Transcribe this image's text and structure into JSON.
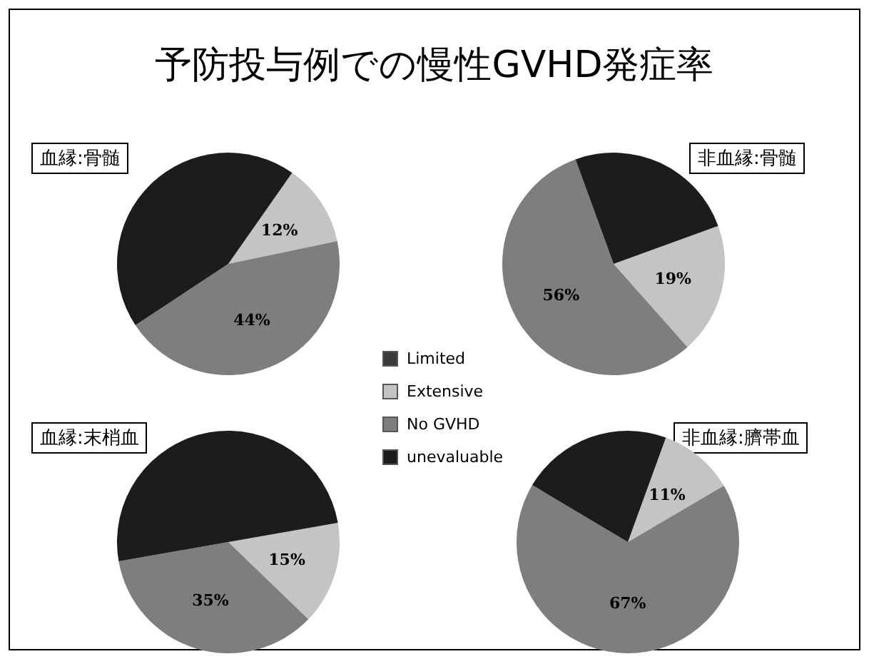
{
  "chart_data": {
    "type": "pie",
    "title": "予防投与例での慢性GVHD発症率",
    "categories": [
      "Limited",
      "Extensive",
      "No GVHD",
      "unevaluable"
    ],
    "colors": [
      "#3a3a3a",
      "#c4c4c4",
      "#7e7e7e",
      "#1c1c1c"
    ],
    "legend": "right",
    "series": [
      {
        "name": "血縁:骨髄",
        "values": [
          0,
          12,
          44,
          44
        ],
        "value_labels": [
          null,
          "12%",
          "44%",
          null
        ]
      },
      {
        "name": "非血縁:骨髄",
        "values": [
          0,
          19,
          56,
          25
        ],
        "value_labels": [
          null,
          "19%",
          "56%",
          null
        ]
      },
      {
        "name": "血縁:末梢血",
        "values": [
          0,
          15,
          35,
          50
        ],
        "value_labels": [
          null,
          "15%",
          "35%",
          null
        ]
      },
      {
        "name": "非血縁:臍帯血",
        "values": [
          0,
          11,
          67,
          22
        ],
        "value_labels": [
          null,
          "11%",
          "67%",
          null
        ]
      }
    ]
  }
}
